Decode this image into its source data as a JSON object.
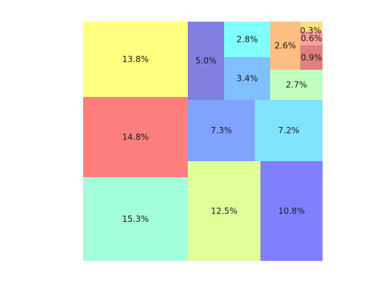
{
  "chart_data": {
    "type": "treemap",
    "title": "",
    "cells": [
      {
        "label": "15.3%",
        "value": 15.3,
        "color": "#a3ffd9"
      },
      {
        "label": "14.8%",
        "value": 14.8,
        "color": "#ff7f7f"
      },
      {
        "label": "13.8%",
        "value": 13.8,
        "color": "#ffff80"
      },
      {
        "label": "12.5%",
        "value": 12.5,
        "color": "#e0ff99"
      },
      {
        "label": "10.8%",
        "value": 10.8,
        "color": "#8080ff"
      },
      {
        "label": "7.3%",
        "value": 7.3,
        "color": "#80a3ff"
      },
      {
        "label": "7.2%",
        "value": 7.2,
        "color": "#80e3ff"
      },
      {
        "label": "5.0%",
        "value": 5.0,
        "color": "#8080e0"
      },
      {
        "label": "3.4%",
        "value": 3.4,
        "color": "#80bfff"
      },
      {
        "label": "2.8%",
        "value": 2.8,
        "color": "#80ffff"
      },
      {
        "label": "2.7%",
        "value": 2.7,
        "color": "#c2ffbf"
      },
      {
        "label": "2.6%",
        "value": 2.6,
        "color": "#ffbf80"
      },
      {
        "label": "0.9%",
        "value": 0.9,
        "color": "#e08080"
      },
      {
        "label": "0.6%",
        "value": 0.6,
        "color": "#ff9f9f"
      },
      {
        "label": "0.3%",
        "value": 0.3,
        "color": "#ffdf80"
      }
    ]
  }
}
